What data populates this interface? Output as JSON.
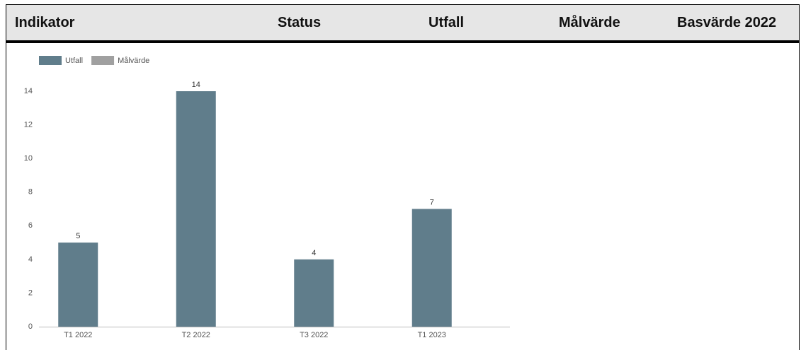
{
  "header": {
    "columns": [
      "Indikator",
      "Status",
      "Utfall",
      "Målvärde",
      "Basvärde 2022"
    ]
  },
  "chart_data": {
    "type": "bar",
    "categories": [
      "T1 2022",
      "T2 2022",
      "T3 2022",
      "T1 2023"
    ],
    "series": [
      {
        "name": "Utfall",
        "color": "#607d8b",
        "values": [
          5,
          14,
          4,
          7
        ]
      },
      {
        "name": "Målvärde",
        "color": "#a0a0a0",
        "values": [
          null,
          null,
          null,
          null
        ]
      }
    ],
    "ylim": [
      0,
      14
    ],
    "yticks": [
      0,
      2,
      4,
      6,
      8,
      10,
      12,
      14
    ],
    "grid": false
  }
}
